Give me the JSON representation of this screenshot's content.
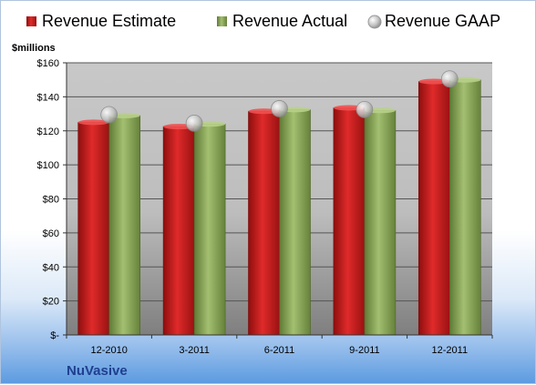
{
  "company": "NuVasive",
  "chart_data": {
    "type": "bar",
    "ylabel": "$millions",
    "ylim": [
      0,
      160
    ],
    "yticks": [
      "$-",
      "$20",
      "$40",
      "$60",
      "$80",
      "$100",
      "$120",
      "$140",
      "$160"
    ],
    "categories": [
      "12-2010",
      "3-2011",
      "6-2011",
      "9-2011",
      "12-2011"
    ],
    "legend_position": "top",
    "grid": true,
    "series": [
      {
        "name": "Revenue Estimate",
        "kind": "bar",
        "color": "#cc1f1f",
        "values": [
          125,
          122.5,
          131.5,
          133.5,
          149
        ]
      },
      {
        "name": "Revenue Actual",
        "kind": "bar",
        "color": "#8aa85a",
        "values": [
          129,
          124,
          132.5,
          132,
          150
        ]
      },
      {
        "name": "Revenue GAAP",
        "kind": "marker",
        "color": "#c8c8c8",
        "values": [
          129.5,
          124.5,
          133,
          132.5,
          150.5
        ]
      }
    ]
  }
}
